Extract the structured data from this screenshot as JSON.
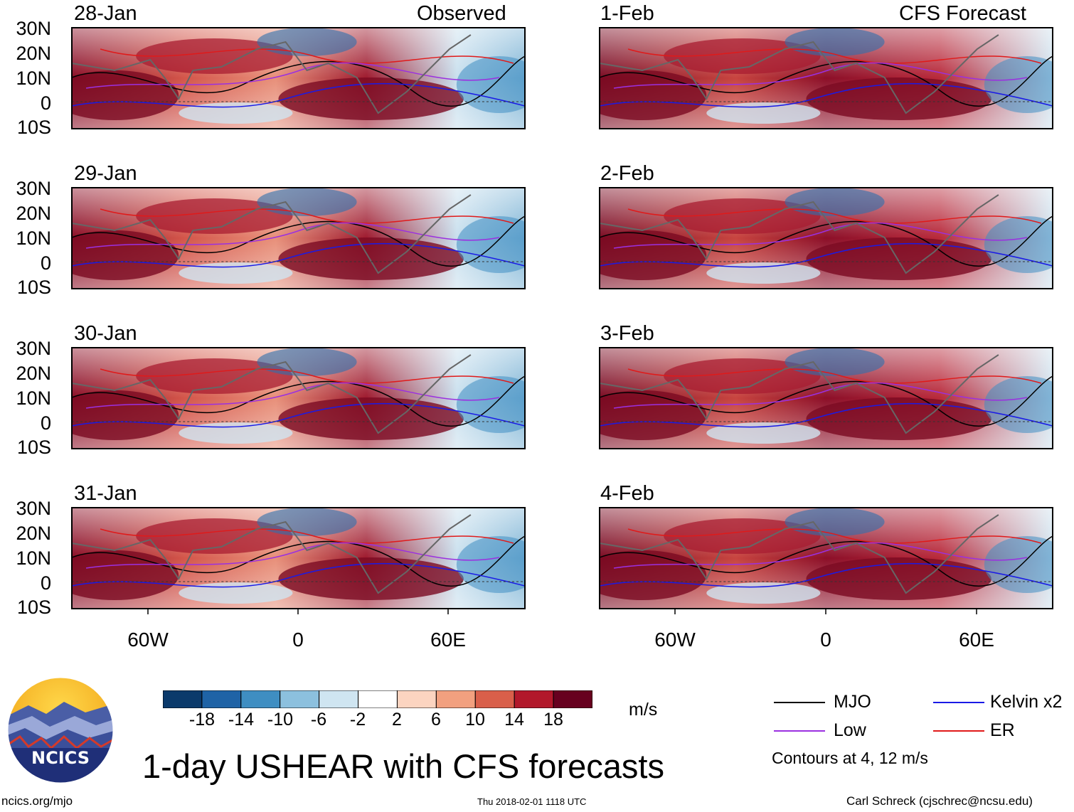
{
  "title": "1-day USHEAR with CFS forecasts",
  "panel_headers": {
    "left": "Observed",
    "right": "CFS Forecast"
  },
  "panels": {
    "left": [
      "28-Jan",
      "29-Jan",
      "30-Jan",
      "31-Jan"
    ],
    "right": [
      "1-Feb",
      "2-Feb",
      "3-Feb",
      "4-Feb"
    ]
  },
  "lat_labels": [
    "30N",
    "20N",
    "10N",
    "0",
    "10S"
  ],
  "lon_labels": [
    "60W",
    "0",
    "60E"
  ],
  "colorbar": {
    "units": "m/s",
    "ticks": [
      "-18",
      "-14",
      "-10",
      "-6",
      "-2",
      "2",
      "6",
      "10",
      "14",
      "18"
    ],
    "colors": [
      "#0b3a6b",
      "#1f63a6",
      "#3f8ec2",
      "#8cc0de",
      "#cfe5f1",
      "#ffffff",
      "#fcd4c0",
      "#f2a07f",
      "#d95f4a",
      "#b2182b",
      "#67001f"
    ]
  },
  "legend": {
    "items": [
      {
        "label": "MJO",
        "color": "#000000"
      },
      {
        "label": "Kelvin x2",
        "color": "#1a1ae6"
      },
      {
        "label": "Low",
        "color": "#9b30e0"
      },
      {
        "label": "ER",
        "color": "#e01a1a"
      }
    ],
    "note": "Contours at 4, 12 m/s"
  },
  "logo": {
    "text": "NCICS"
  },
  "footer": {
    "url": "ncics.org/mjo",
    "timestamp": "Thu 2018-02-01 1118 UTC",
    "credit": "Carl Schreck (cjschrec@ncsu.edu)"
  }
}
